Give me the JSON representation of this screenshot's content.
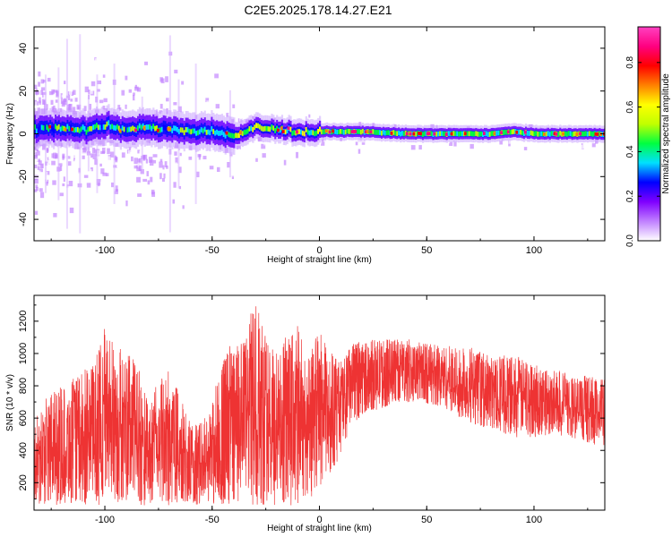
{
  "title": "C2E5.2025.178.14.27.E21",
  "chart_data": [
    {
      "type": "heatmap",
      "title": "C2E5.2025.178.14.27.E21",
      "xlabel": "Height of straight line (km)",
      "ylabel": "Frequency (Hz)",
      "xlim": [
        -133,
        133
      ],
      "ylim": [
        -50,
        50
      ],
      "x_ticks": [
        -100,
        -50,
        0,
        50,
        100
      ],
      "y_ticks": [
        -40,
        -20,
        0,
        20,
        40
      ],
      "colorbar": {
        "label": "Normalized spectral amplitude",
        "ticks": [
          0.0,
          0.2,
          0.4,
          0.6,
          0.8
        ],
        "range": [
          0,
          0.96
        ],
        "colors": [
          "#ffffff",
          "#c080ff",
          "#8000ff",
          "#0000ff",
          "#00e0ff",
          "#00ff40",
          "#c0ff00",
          "#ffff00",
          "#ff8000",
          "#ff0000",
          "#ff0080",
          "#ff40c0"
        ]
      },
      "band_center_hz": [
        [
          -133,
          2
        ],
        [
          -120,
          3
        ],
        [
          -110,
          2
        ],
        [
          -100,
          4
        ],
        [
          -90,
          2
        ],
        [
          -80,
          3
        ],
        [
          -70,
          2
        ],
        [
          -60,
          1
        ],
        [
          -50,
          1
        ],
        [
          -40,
          -1
        ],
        [
          -30,
          3
        ],
        [
          -20,
          2
        ],
        [
          -10,
          1
        ],
        [
          0,
          1
        ],
        [
          10,
          1
        ],
        [
          20,
          1
        ],
        [
          40,
          0
        ],
        [
          60,
          0
        ],
        [
          80,
          0
        ],
        [
          90,
          1
        ],
        [
          100,
          0
        ],
        [
          133,
          0
        ]
      ],
      "grid": false
    },
    {
      "type": "line",
      "xlabel": "Height of straight line (km)",
      "ylabel": "SNR (10 * v/v)",
      "xlim": [
        -133,
        133
      ],
      "ylim": [
        30,
        1360
      ],
      "x_ticks": [
        -100,
        -50,
        0,
        50,
        100
      ],
      "y_ticks": [
        200,
        400,
        600,
        800,
        1000,
        1200
      ],
      "line_color": "#ee3333",
      "envelope": {
        "x": [
          -133,
          -125,
          -115,
          -105,
          -100,
          -95,
          -90,
          -85,
          -80,
          -75,
          -70,
          -65,
          -60,
          -55,
          -50,
          -45,
          -40,
          -35,
          -30,
          -25,
          -20,
          -15,
          -10,
          -5,
          0,
          5,
          10,
          15,
          20,
          30,
          40,
          50,
          60,
          70,
          80,
          90,
          100,
          110,
          120,
          133
        ],
        "lower": [
          60,
          60,
          60,
          60,
          60,
          60,
          60,
          60,
          60,
          60,
          60,
          60,
          60,
          60,
          60,
          60,
          60,
          60,
          60,
          60,
          60,
          60,
          60,
          100,
          150,
          250,
          350,
          550,
          620,
          650,
          700,
          680,
          640,
          560,
          520,
          480,
          480,
          500,
          450,
          420
        ],
        "upper": [
          580,
          780,
          850,
          950,
          1190,
          1100,
          1000,
          980,
          700,
          850,
          900,
          750,
          580,
          580,
          700,
          1000,
          1080,
          1100,
          1350,
          1100,
          1000,
          1130,
          1200,
          1000,
          1180,
          1000,
          1000,
          1060,
          1100,
          1100,
          1100,
          1080,
          1060,
          1040,
          1000,
          1000,
          950,
          900,
          870,
          850
        ]
      },
      "grid": false
    }
  ]
}
